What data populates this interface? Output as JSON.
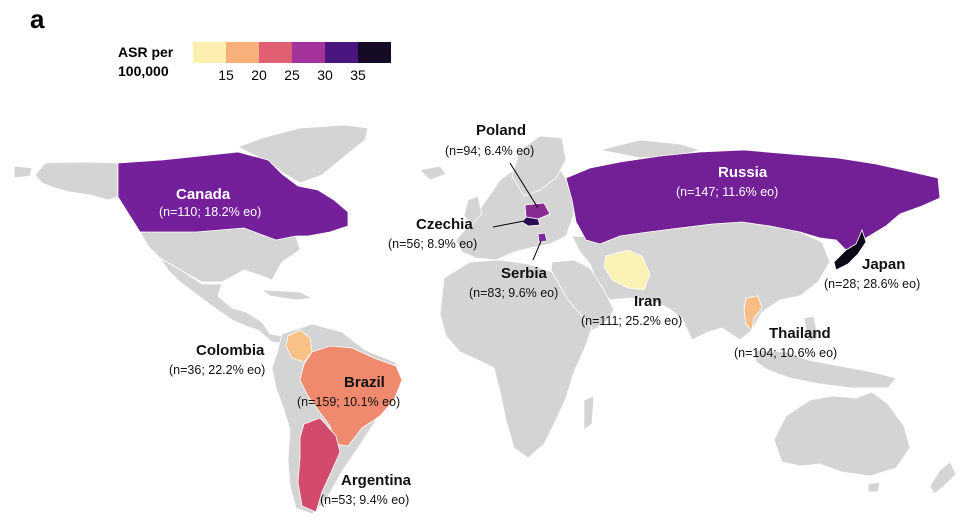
{
  "panel_label": "a",
  "legend": {
    "title_line1": "ASR per",
    "title_line2": "100,000",
    "ticks": [
      "15",
      "20",
      "25",
      "30",
      "35"
    ],
    "colors": [
      "#fcefb0",
      "#f8b07a",
      "#e05f72",
      "#a3339a",
      "#4b1580",
      "#150b25"
    ]
  },
  "colors": {
    "land": "#d4d4d4",
    "border": "#ffffff"
  },
  "countries": {
    "canada": {
      "name": "Canada",
      "stat": "(n=110; 18.2% eo)",
      "color": "#74209a"
    },
    "russia": {
      "name": "Russia",
      "stat": "(n=147; 11.6% eo)",
      "color": "#731f96"
    },
    "poland": {
      "name": "Poland",
      "stat": "(n=94; 6.4% eo)",
      "color": "#8a2a93"
    },
    "czechia": {
      "name": "Czechia",
      "stat": "(n=56; 8.9% eo)",
      "color": "#2b0c52"
    },
    "serbia": {
      "name": "Serbia",
      "stat": "(n=83; 9.6% eo)",
      "color": "#7a2aa0"
    },
    "iran": {
      "name": "Iran",
      "stat": "(n=111; 25.2% eo)",
      "color": "#fbf3b6"
    },
    "japan": {
      "name": "Japan",
      "stat": "(n=28; 28.6% eo)",
      "color": "#0d0a18"
    },
    "thailand": {
      "name": "Thailand",
      "stat": "(n=104; 10.6% eo)",
      "color": "#f9be86"
    },
    "colombia": {
      "name": "Colombia",
      "stat": "(n=36; 22.2% eo)",
      "color": "#f9c185"
    },
    "brazil": {
      "name": "Brazil",
      "stat": "(n=159; 10.1% eo)",
      "color": "#f08a6e"
    },
    "argentina": {
      "name": "Argentina",
      "stat": "(n=53; 9.4% eo)",
      "color": "#d24a6c"
    }
  }
}
